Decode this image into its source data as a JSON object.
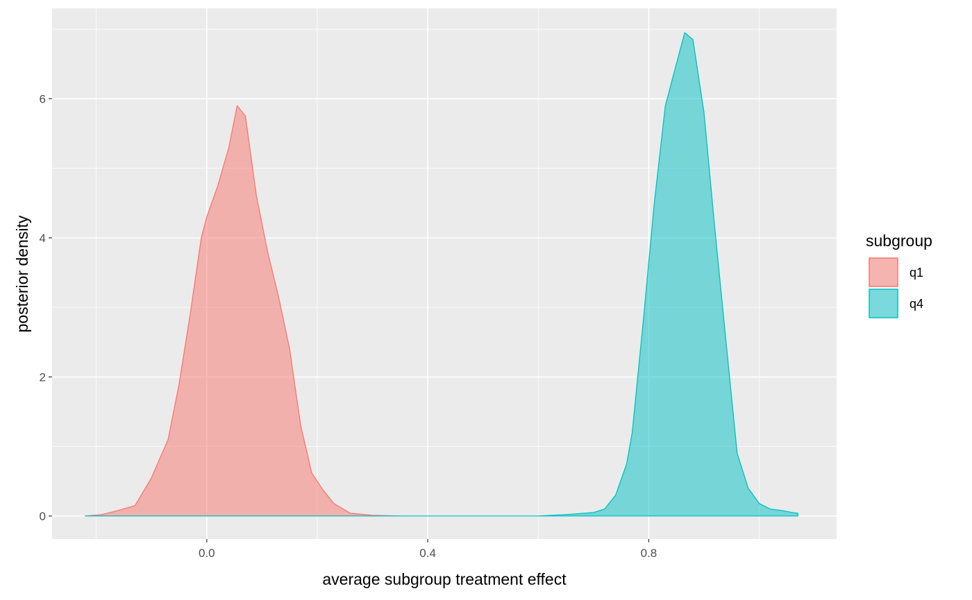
{
  "chart_data": {
    "type": "area",
    "title": "",
    "xlabel": "average subgroup treatment effect",
    "ylabel": "posterior density",
    "xlim": [
      -0.28,
      1.14
    ],
    "ylim": [
      -0.33,
      7.3
    ],
    "x_ticks": [
      0.0,
      0.4,
      0.8
    ],
    "x_tick_labels": [
      "0.0",
      "0.4",
      "0.8"
    ],
    "y_ticks": [
      0,
      2,
      4,
      6
    ],
    "y_tick_labels": [
      "0",
      "2",
      "4",
      "6"
    ],
    "grid": true,
    "legend": {
      "title": "subgroup",
      "position": "right"
    },
    "series": [
      {
        "name": "q1",
        "fill": "#F8766D",
        "points": [
          [
            -0.22,
            0.0
          ],
          [
            -0.19,
            0.02
          ],
          [
            -0.16,
            0.08
          ],
          [
            -0.13,
            0.15
          ],
          [
            -0.1,
            0.55
          ],
          [
            -0.07,
            1.1
          ],
          [
            -0.05,
            1.9
          ],
          [
            -0.03,
            2.9
          ],
          [
            -0.01,
            4.0
          ],
          [
            0.0,
            4.3
          ],
          [
            0.02,
            4.75
          ],
          [
            0.04,
            5.3
          ],
          [
            0.055,
            5.9
          ],
          [
            0.07,
            5.75
          ],
          [
            0.09,
            4.6
          ],
          [
            0.11,
            3.8
          ],
          [
            0.13,
            3.15
          ],
          [
            0.15,
            2.4
          ],
          [
            0.17,
            1.3
          ],
          [
            0.19,
            0.62
          ],
          [
            0.21,
            0.38
          ],
          [
            0.23,
            0.18
          ],
          [
            0.26,
            0.04
          ],
          [
            0.3,
            0.01
          ],
          [
            0.35,
            0.0
          ]
        ]
      },
      {
        "name": "q4",
        "fill": "#00BFC4",
        "points": [
          [
            -0.22,
            0.0
          ],
          [
            0.6,
            0.0
          ],
          [
            0.65,
            0.02
          ],
          [
            0.7,
            0.05
          ],
          [
            0.72,
            0.1
          ],
          [
            0.74,
            0.3
          ],
          [
            0.76,
            0.75
          ],
          [
            0.77,
            1.2
          ],
          [
            0.79,
            2.8
          ],
          [
            0.81,
            4.5
          ],
          [
            0.83,
            5.9
          ],
          [
            0.85,
            6.5
          ],
          [
            0.865,
            6.95
          ],
          [
            0.88,
            6.85
          ],
          [
            0.9,
            5.8
          ],
          [
            0.92,
            4.1
          ],
          [
            0.94,
            2.5
          ],
          [
            0.96,
            0.9
          ],
          [
            0.98,
            0.4
          ],
          [
            1.0,
            0.18
          ],
          [
            1.02,
            0.1
          ],
          [
            1.04,
            0.08
          ],
          [
            1.06,
            0.05
          ],
          [
            1.07,
            0.04
          ],
          [
            1.07,
            0.0
          ]
        ]
      }
    ]
  }
}
